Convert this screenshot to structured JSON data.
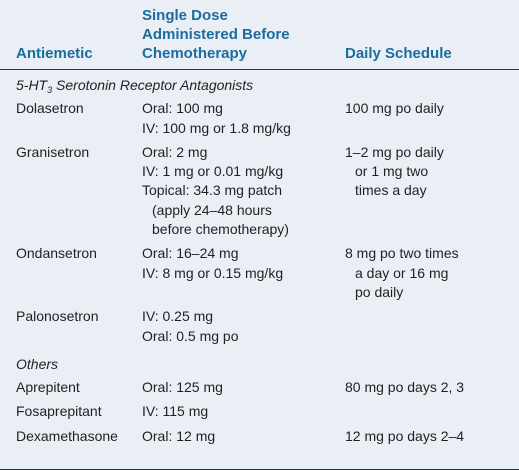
{
  "header": [
    "Antiemetic",
    [
      "Single Dose",
      "Administered Before",
      "Chemotherapy"
    ],
    "Daily Schedule"
  ],
  "sections": [
    {
      "title": {
        "prefix": "5-HT",
        "subscript": "3",
        "rest": " Serotonin Receptor Antagonists"
      },
      "rows": [
        {
          "drug": "Dolasetron",
          "dose": [
            [
              "Oral: 100 mg"
            ],
            [
              "IV: 100 mg or 1.8 mg/kg"
            ]
          ],
          "schedule": [
            [
              "100 mg po daily"
            ]
          ]
        },
        {
          "drug": "Granisetron",
          "dose": [
            [
              "Oral: 2 mg"
            ],
            [
              "IV: 1 mg or 0.01 mg/kg"
            ],
            [
              "Topical: 34.3 mg patch",
              "(apply 24–48 hours",
              "before chemotherapy)"
            ]
          ],
          "schedule": [
            [
              "1–2 mg po daily",
              "or 1 mg two",
              "times a day"
            ]
          ]
        },
        {
          "drug": "Ondansetron",
          "dose": [
            [
              "Oral: 16–24 mg"
            ],
            [
              "IV: 8 mg or 0.15 mg/kg"
            ]
          ],
          "schedule": [
            [
              "8 mg po two times",
              "a day or 16 mg",
              "po daily"
            ]
          ]
        },
        {
          "drug": "Palonosetron",
          "dose": [
            [
              "IV: 0.25 mg"
            ],
            [
              "Oral: 0.5 mg po"
            ]
          ],
          "schedule": []
        }
      ]
    },
    {
      "title": {
        "prefix": "Others"
      },
      "rows": [
        {
          "drug": "Aprepitent",
          "dose": [
            [
              "Oral: 125 mg"
            ]
          ],
          "schedule": [
            [
              "80 mg po days 2, 3"
            ]
          ]
        },
        {
          "drug": "Fosaprepitant",
          "dose": [
            [
              "IV: 115 mg"
            ]
          ],
          "schedule": []
        },
        {
          "drug": "Dexamethasone",
          "dose": [
            [
              "Oral: 12 mg"
            ]
          ],
          "schedule": [
            [
              "12 mg po days 2–4"
            ]
          ]
        }
      ]
    }
  ]
}
